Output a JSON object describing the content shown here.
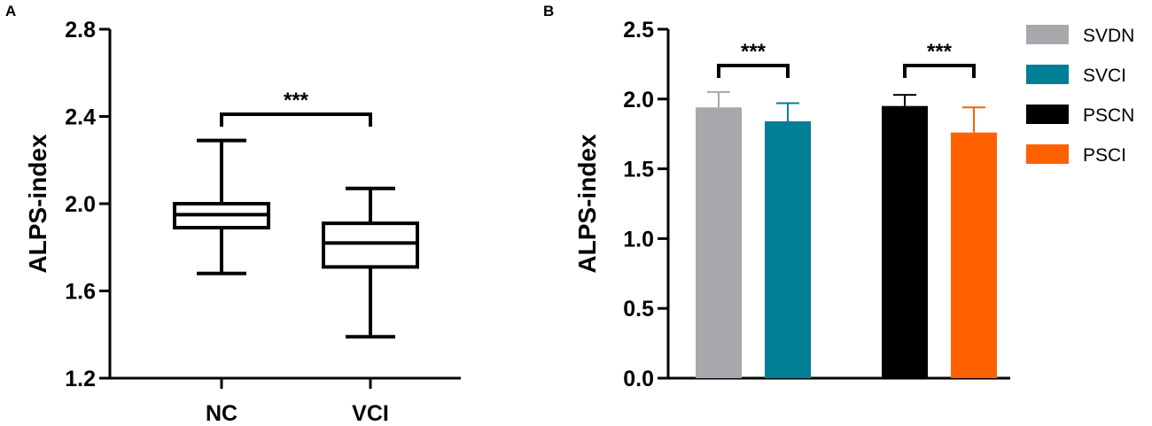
{
  "panels": {
    "a": {
      "letter": "A"
    },
    "b": {
      "letter": "B"
    }
  },
  "chart_data": [
    {
      "type": "box",
      "panel": "A",
      "title": "",
      "xlabel": "",
      "ylabel": "ALPS-index",
      "ylim": [
        1.2,
        2.8
      ],
      "yticks": [
        1.2,
        1.6,
        2.0,
        2.4,
        2.8
      ],
      "ytick_labels": [
        "1.2",
        "1.6",
        "2.0",
        "2.4",
        "2.8"
      ],
      "categories": [
        "NC",
        "VCI"
      ],
      "boxes": [
        {
          "name": "NC",
          "min": 1.68,
          "q1": 1.89,
          "median": 1.95,
          "q3": 2.0,
          "max": 2.29
        },
        {
          "name": "VCI",
          "min": 1.39,
          "q1": 1.71,
          "median": 1.82,
          "q3": 1.91,
          "max": 2.07
        }
      ],
      "significance": [
        {
          "from": "NC",
          "to": "VCI",
          "label": "***",
          "y": 2.41
        }
      ]
    },
    {
      "type": "bar",
      "panel": "B",
      "title": "",
      "xlabel": "",
      "ylabel": "ALPS-index",
      "ylim": [
        0.0,
        2.5
      ],
      "yticks": [
        0.0,
        0.5,
        1.0,
        1.5,
        2.0,
        2.5
      ],
      "ytick_labels": [
        "0.0",
        "0.5",
        "1.0",
        "1.5",
        "2.0",
        "2.5"
      ],
      "legend_position": "right",
      "series": [
        {
          "name": "SVDN",
          "value": 1.94,
          "error": 0.11,
          "color": "#a7a8ab"
        },
        {
          "name": "SVCI",
          "value": 1.84,
          "error": 0.13,
          "color": "#007f96"
        },
        {
          "name": "PSCN",
          "value": 1.95,
          "error": 0.08,
          "color": "#000000"
        },
        {
          "name": "PSCI",
          "value": 1.76,
          "error": 0.18,
          "color": "#ff6100"
        }
      ],
      "significance": [
        {
          "from": "SVDN",
          "to": "SVCI",
          "label": "***",
          "y": 2.24
        },
        {
          "from": "PSCN",
          "to": "PSCI",
          "label": "***",
          "y": 2.24
        }
      ]
    }
  ]
}
